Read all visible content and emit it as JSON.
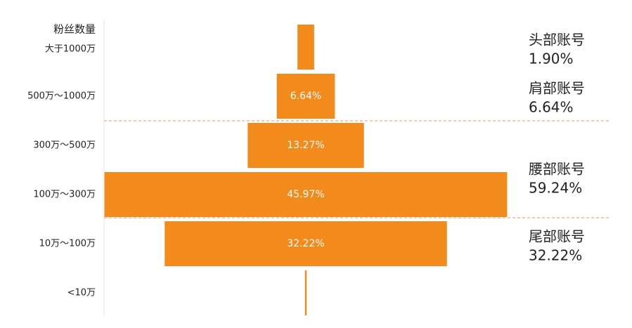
{
  "chart_data": {
    "type": "funnel-bar",
    "axis_title": "粉丝数量",
    "categories": [
      "大于1000万",
      "500万～1000万",
      "300万～500万",
      "100万～300万",
      "10万～100万",
      "<10万"
    ],
    "values": [
      1.9,
      6.64,
      13.27,
      45.97,
      32.22,
      0.2
    ],
    "value_labels": [
      null,
      "6.64%",
      "13.27%",
      "45.97%",
      "32.22%",
      null
    ],
    "color": "#f28a1c",
    "groups": [
      {
        "name": "头部账号",
        "share": "1.90%"
      },
      {
        "name": "肩部账号",
        "share": "6.64%"
      },
      {
        "name": "腰部账号",
        "share": "59.24%"
      },
      {
        "name": "尾部账号",
        "share": "32.22%"
      }
    ]
  }
}
